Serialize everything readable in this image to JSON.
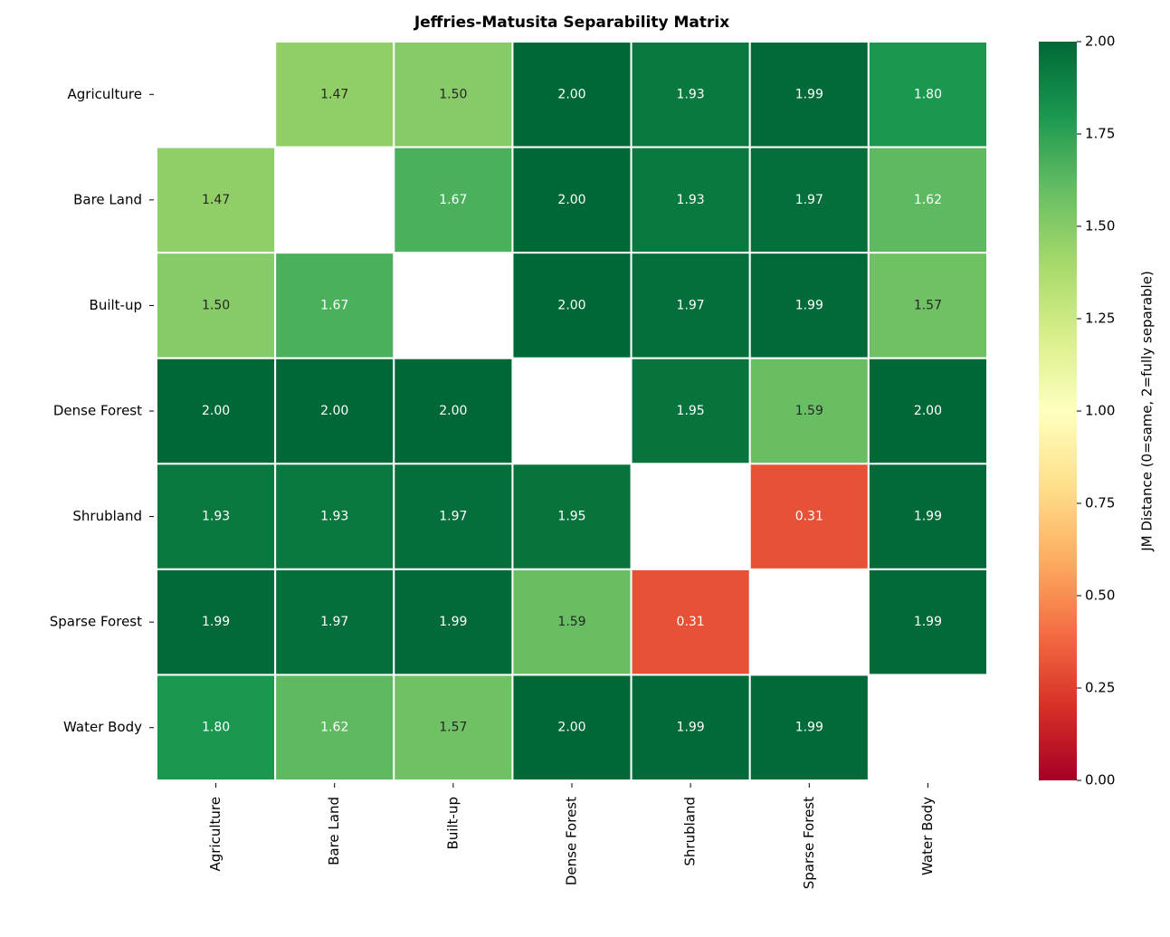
{
  "chart_data": {
    "type": "heatmap",
    "title": "Jeffries-Matusita Separability Matrix",
    "x_categories": [
      "Agriculture",
      "Bare Land",
      "Built-up",
      "Dense Forest",
      "Shrubland",
      "Sparse Forest",
      "Water Body"
    ],
    "y_categories": [
      "Agriculture",
      "Bare Land",
      "Built-up",
      "Dense Forest",
      "Shrubland",
      "Sparse Forest",
      "Water Body"
    ],
    "values": [
      [
        null,
        1.47,
        1.5,
        2.0,
        1.93,
        1.99,
        1.8
      ],
      [
        1.47,
        null,
        1.67,
        2.0,
        1.93,
        1.97,
        1.62
      ],
      [
        1.5,
        1.67,
        null,
        2.0,
        1.97,
        1.99,
        1.57
      ],
      [
        2.0,
        2.0,
        2.0,
        null,
        1.95,
        1.59,
        2.0
      ],
      [
        1.93,
        1.93,
        1.97,
        1.95,
        null,
        0.31,
        1.99
      ],
      [
        1.99,
        1.97,
        1.99,
        1.59,
        0.31,
        null,
        1.99
      ],
      [
        1.8,
        1.62,
        1.57,
        2.0,
        1.99,
        1.99,
        null
      ]
    ],
    "value_labels": [
      [
        null,
        "1.47",
        "1.50",
        "2.00",
        "1.93",
        "1.99",
        "1.80"
      ],
      [
        "1.47",
        null,
        "1.67",
        "2.00",
        "1.93",
        "1.97",
        "1.62"
      ],
      [
        "1.50",
        "1.67",
        null,
        "2.00",
        "1.97",
        "1.99",
        "1.57"
      ],
      [
        "2.00",
        "2.00",
        "2.00",
        null,
        "1.95",
        "1.59",
        "2.00"
      ],
      [
        "1.93",
        "1.93",
        "1.97",
        "1.95",
        null,
        "0.31",
        "1.99"
      ],
      [
        "1.99",
        "1.97",
        "1.99",
        "1.59",
        "0.31",
        null,
        "1.99"
      ],
      [
        "1.80",
        "1.62",
        "1.57",
        "2.00",
        "1.99",
        "1.99",
        null
      ]
    ],
    "colormap": "RdYlGn",
    "zlim": [
      0,
      2
    ],
    "zticks": [
      {
        "value": 0,
        "label": "0.00"
      },
      {
        "value": 0.25,
        "label": "0.25"
      },
      {
        "value": 0.5,
        "label": "0.50"
      },
      {
        "value": 0.75,
        "label": "0.75"
      },
      {
        "value": 1,
        "label": "1.00"
      },
      {
        "value": 1.25,
        "label": "1.25"
      },
      {
        "value": 1.5,
        "label": "1.50"
      },
      {
        "value": 1.75,
        "label": "1.75"
      },
      {
        "value": 2,
        "label": "2.00"
      }
    ],
    "colorbar_label": "JM Distance (0=same, 2=fully separable)"
  }
}
